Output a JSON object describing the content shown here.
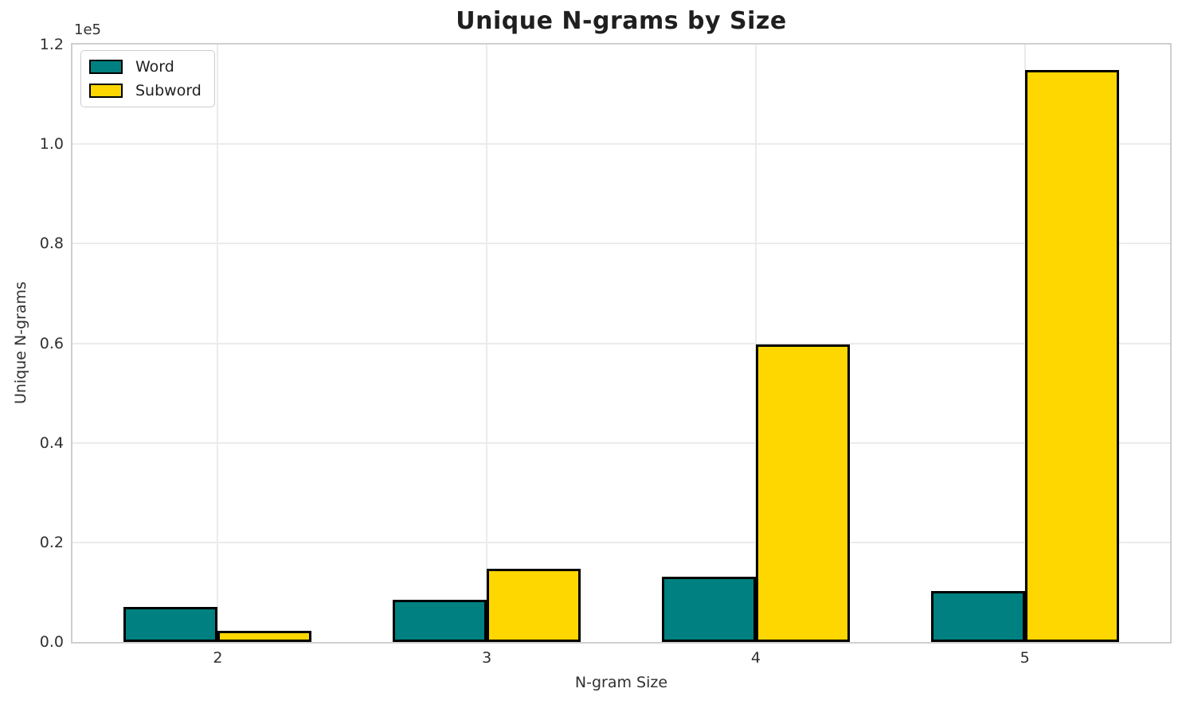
{
  "chart_data": {
    "type": "bar",
    "title": "Unique N-grams by Size",
    "xlabel": "N-gram Size",
    "ylabel": "Unique N-grams",
    "y_offset_label": "1e5",
    "categories": [
      "2",
      "3",
      "4",
      "5"
    ],
    "series": [
      {
        "name": "Word",
        "color": "#008080",
        "values": [
          7100,
          8400,
          13100,
          10200
        ]
      },
      {
        "name": "Subword",
        "color": "#FFD700",
        "values": [
          2200,
          14700,
          59700,
          114900
        ]
      }
    ],
    "ylim": [
      0,
      120000
    ],
    "yticks": [
      {
        "value": 0,
        "label": "0.0"
      },
      {
        "value": 20000,
        "label": "0.2"
      },
      {
        "value": 40000,
        "label": "0.4"
      },
      {
        "value": 60000,
        "label": "0.6"
      },
      {
        "value": 80000,
        "label": "0.8"
      },
      {
        "value": 100000,
        "label": "1.0"
      },
      {
        "value": 120000,
        "label": "1.2"
      }
    ],
    "grid": true,
    "legend": {
      "position": "upper left",
      "entries": [
        "Word",
        "Subword"
      ]
    },
    "bar_edge_color": "#000000",
    "colors": {
      "grid": "#ebebeb",
      "spine": "#cfcfcf",
      "text": "#303030",
      "title": "#1f1f1f"
    }
  }
}
